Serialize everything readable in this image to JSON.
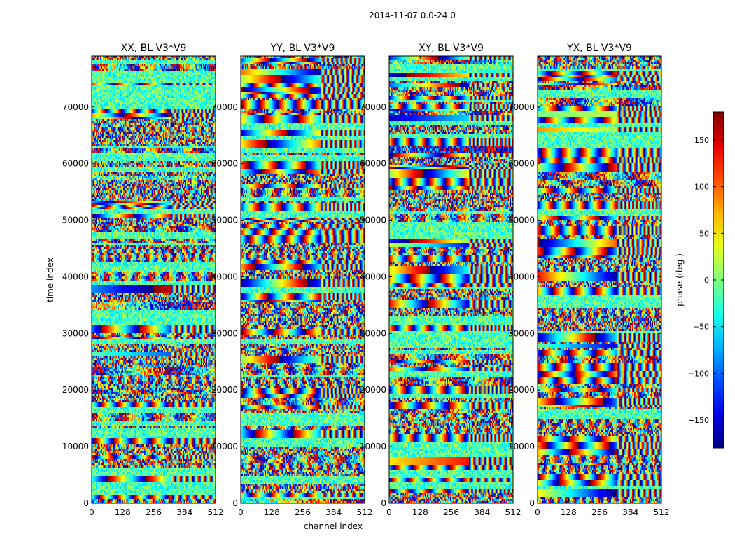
{
  "chart_data": {
    "type": "heatmap",
    "suptitle": "2014-11-07 0.0-24.0",
    "xlabel": "channel index",
    "ylabel": "time index",
    "xlim": [
      0,
      512
    ],
    "ylim": [
      0,
      79000
    ],
    "xticks": [
      "0",
      "128",
      "256",
      "384",
      "512"
    ],
    "xtick_values": [
      0,
      128,
      256,
      384,
      512
    ],
    "yticks": [
      "0",
      "10000",
      "20000",
      "30000",
      "40000",
      "50000",
      "60000",
      "70000"
    ],
    "ytick_values": [
      0,
      10000,
      20000,
      30000,
      40000,
      50000,
      60000,
      70000
    ],
    "panels": [
      {
        "title": "XX, BL V3*V9",
        "seed": 11
      },
      {
        "title": "YY, BL V3*V9",
        "seed": 23
      },
      {
        "title": "XY, BL V3*V9",
        "seed": 37
      },
      {
        "title": "YX, BL V3*V9",
        "seed": 53
      }
    ],
    "colorbar": {
      "label": "phase (deg.)",
      "range": [
        -180,
        180
      ],
      "ticks": [
        "150",
        "100",
        "50",
        "0",
        "−50",
        "−100",
        "−150"
      ],
      "tick_values": [
        150,
        100,
        50,
        0,
        -50,
        -100,
        -150
      ],
      "colormap": "jet"
    }
  }
}
